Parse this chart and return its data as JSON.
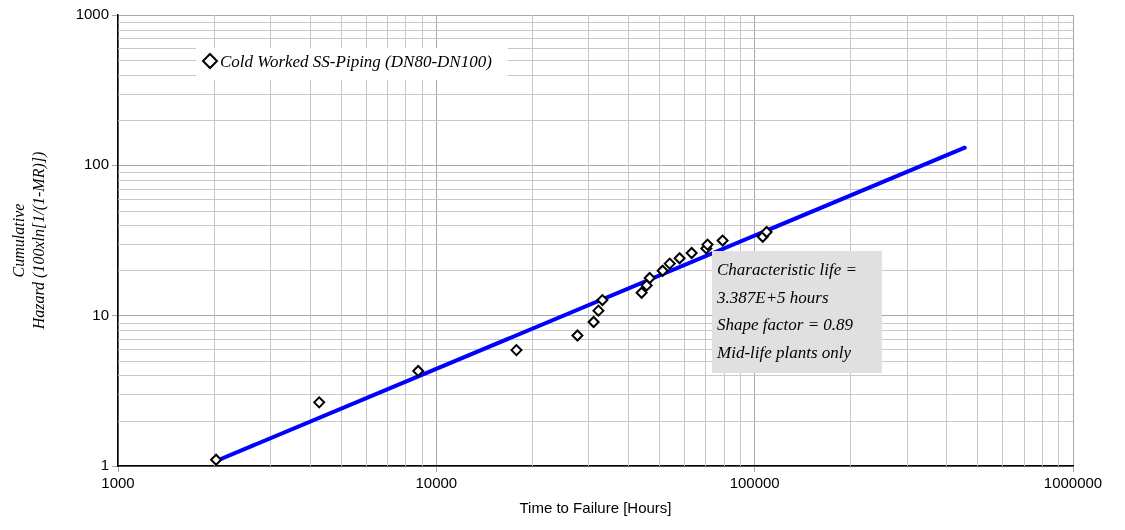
{
  "chart_data": {
    "type": "scatter",
    "xlabel": "Time to Failure [Hours]",
    "ylabel": "Cumulative\nHazard (100xln[1/(1-MR)])",
    "log": "xy",
    "grid": true,
    "legend": "top left",
    "marker": "diamond",
    "xlim": [
      1000,
      1000000
    ],
    "xticks": [
      1000,
      10000,
      100000,
      1000000
    ],
    "ylim": [
      1,
      1000
    ],
    "yticks": [
      1,
      10,
      100,
      1000
    ],
    "series": [
      {
        "name": "Cold Worked SS-Piping (DN80-DN100)",
        "color": "#000000",
        "x": [
          2033,
          4285,
          8770,
          17850,
          27750,
          31190,
          32300,
          33250,
          44150,
          45800,
          46800,
          51400,
          54100,
          58100,
          63400,
          70500,
          71100,
          79300,
          106000,
          109000
        ],
        "values": [
          1.1,
          2.65,
          4.29,
          5.9,
          7.38,
          9.08,
          10.8,
          12.7,
          14.2,
          15.9,
          17.8,
          19.9,
          22.2,
          24.1,
          26.1,
          28,
          29.7,
          31.6,
          33.5,
          36
        ]
      },
      {
        "type": "line",
        "color": "#0000ff",
        "marker": "none",
        "line_style": "solid",
        "x": [
          2033,
          457000
        ],
        "values": [
          1.08,
          131
        ]
      }
    ],
    "annotations": [
      "Characteristic life =",
      "3.387E+5 hours",
      "Shape factor = 0.89",
      "Mid-life plants only"
    ]
  }
}
